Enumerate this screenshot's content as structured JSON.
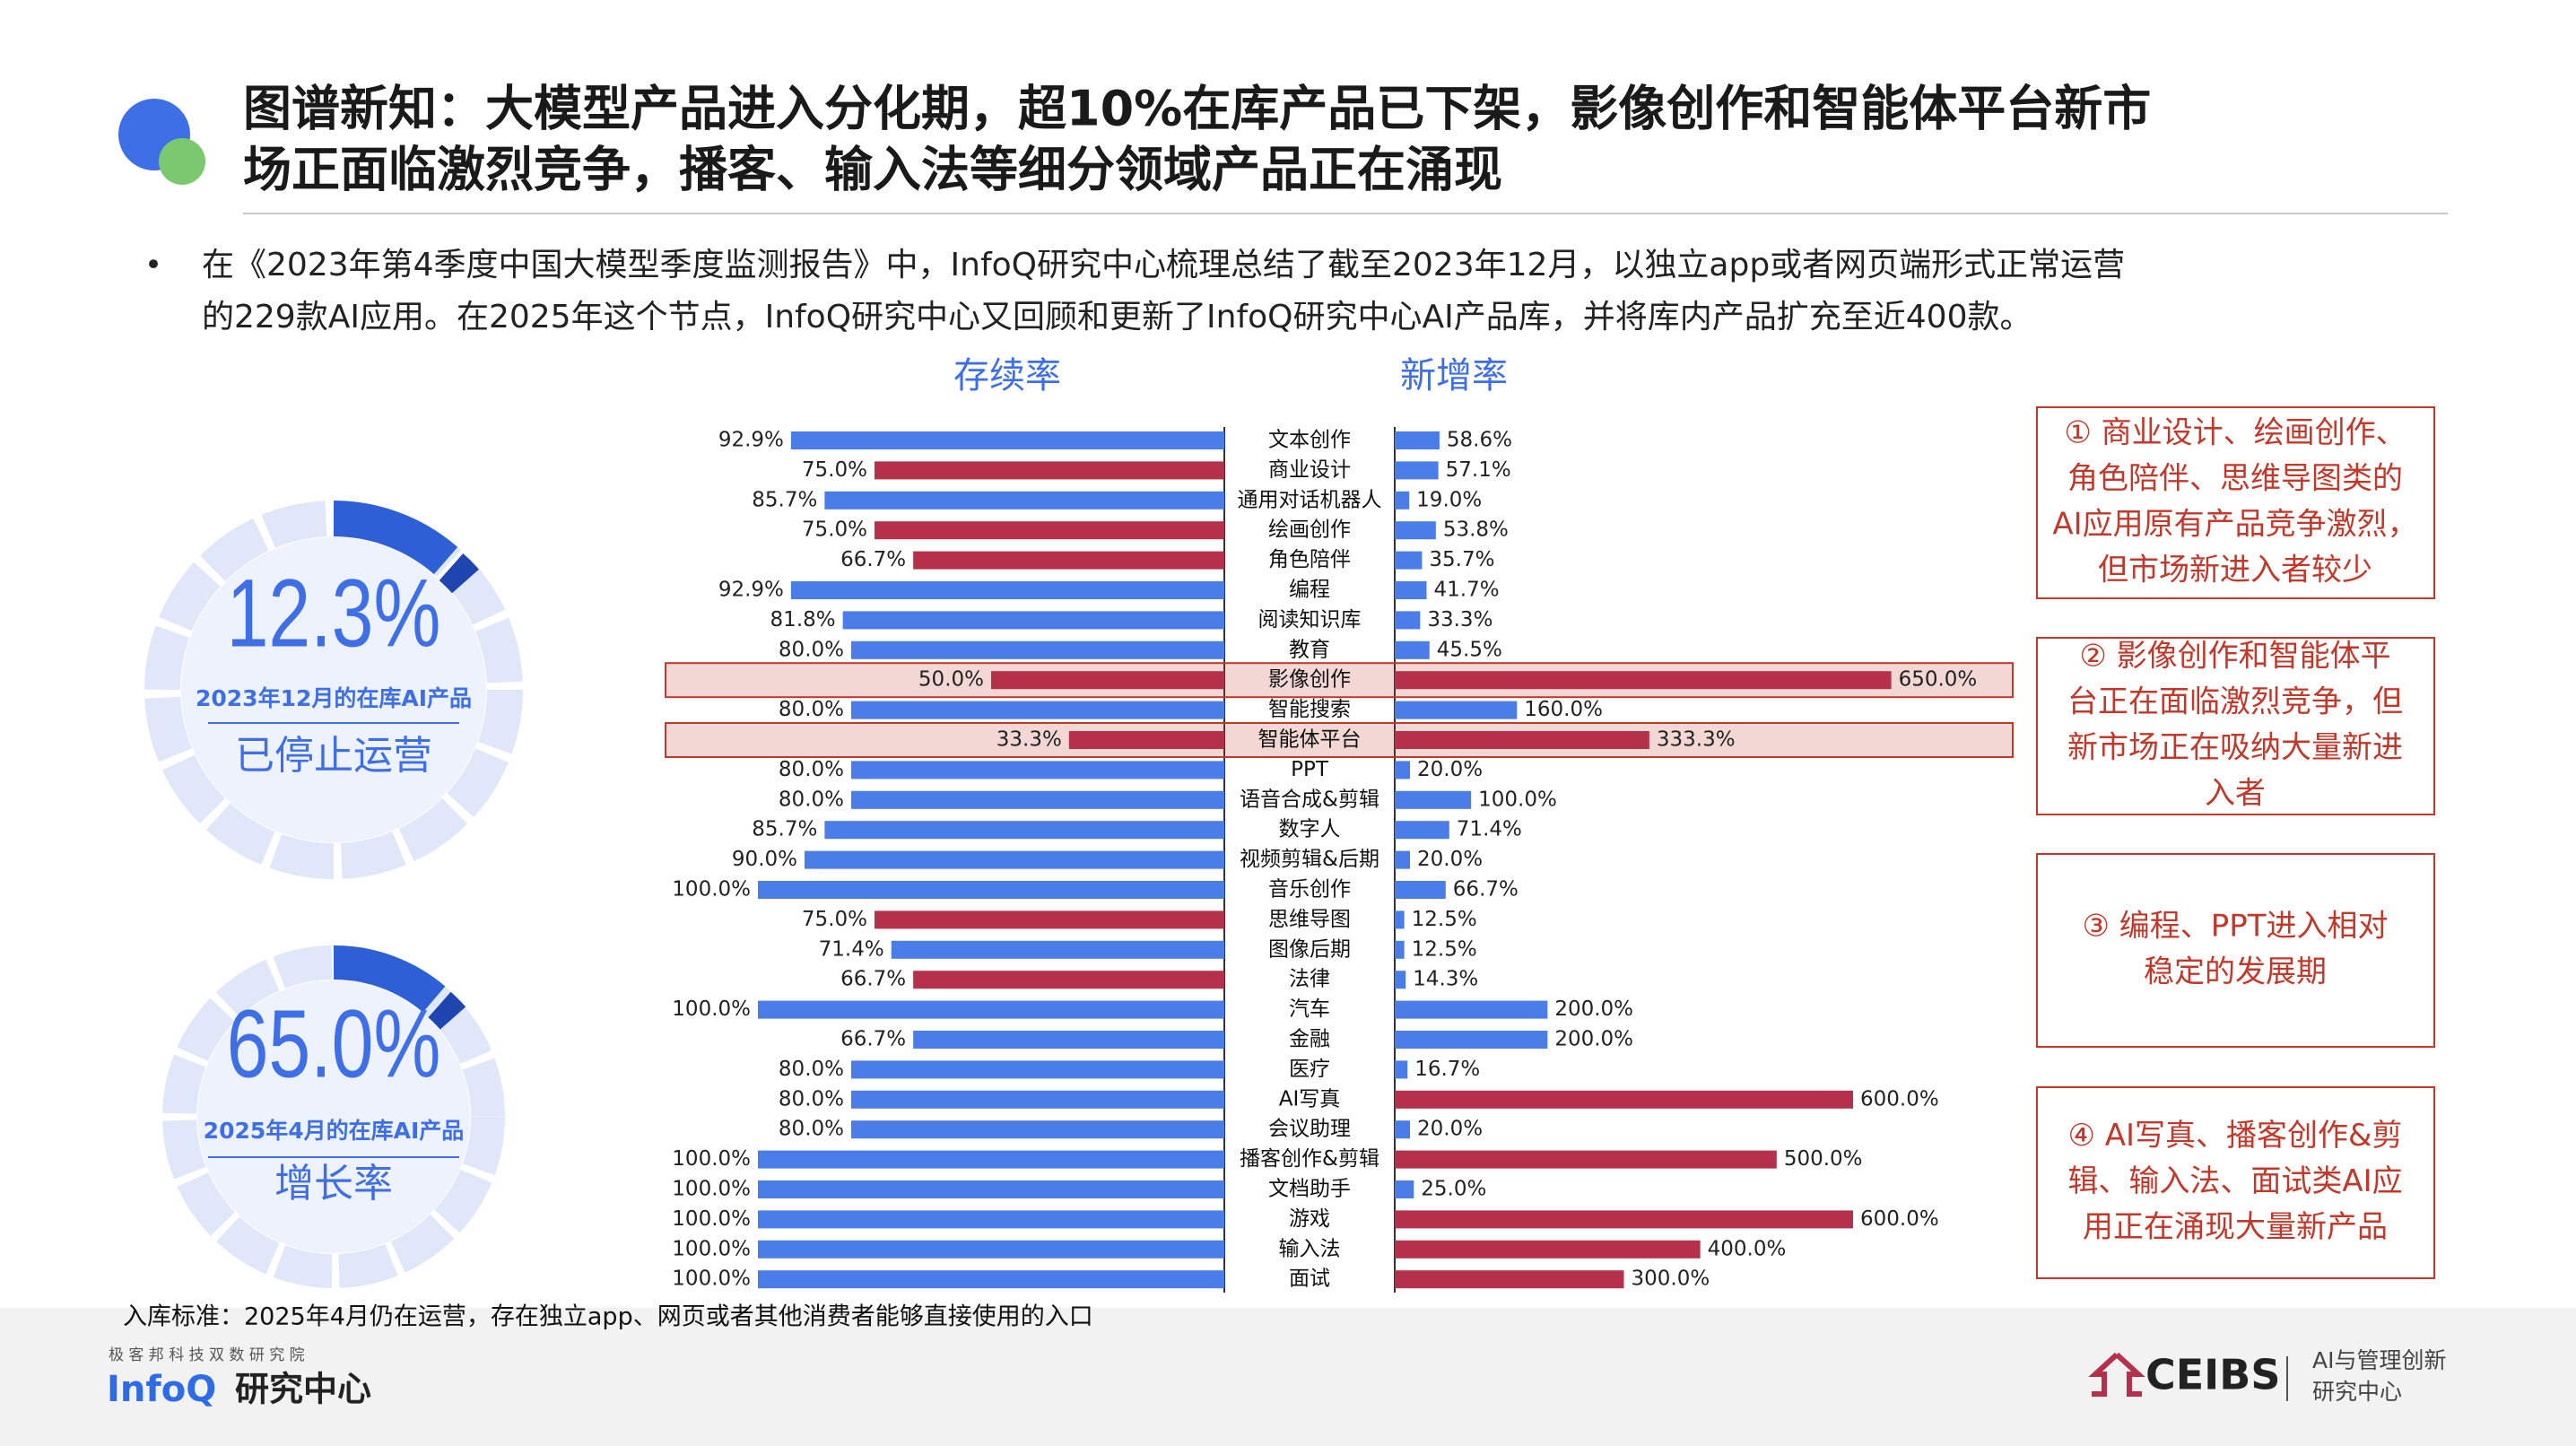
{
  "header": {
    "title": [
      "图谱新知：大模型产品进入分化期，超10%在库产品已下架，影像创作和智能体平台新市",
      "场正面临激烈竞争，播客、输入法等细分领域产品正在涌现"
    ],
    "bullet": [
      "在《2023年第4季度中国大模型季度监测报告》中，InfoQ研究中心梳理总结了截至2023年12月，以独立app或者网页端形式正常运营",
      "的229款AI应用。在2025年这个节点，InfoQ研究中心又回顾和更新了InfoQ研究中心AI产品库，并将库内产品扩充至近400款。"
    ]
  },
  "kpis": [
    {
      "value": "12.3%",
      "caption": "2023年12月的在库AI产品",
      "label": "已停止运营"
    },
    {
      "value": "65.0%",
      "caption": "2025年4月的在库AI产品",
      "label": "增长率"
    }
  ],
  "chart_data": {
    "type": "butterfly",
    "categories": [
      "文本创作",
      "商业设计",
      "通用对话机器人",
      "绘画创作",
      "角色陪伴",
      "编程",
      "阅读知识库",
      "教育",
      "影像创作",
      "智能搜索",
      "智能体平台",
      "PPT",
      "语音合成&剪辑",
      "数字人",
      "视频剪辑&后期",
      "音乐创作",
      "思维导图",
      "图像后期",
      "法律",
      "汽车",
      "金融",
      "医疗",
      "AI写真",
      "会议助理",
      "播客创作&剪辑",
      "文档助手",
      "游戏",
      "输入法",
      "面试"
    ],
    "series": [
      {
        "name": "存续率",
        "xlim": [
          0,
          100
        ],
        "values": [
          92.9,
          75.0,
          85.7,
          75.0,
          66.7,
          92.9,
          81.8,
          80.0,
          50.0,
          80.0,
          33.3,
          80.0,
          80.0,
          85.7,
          90.0,
          100.0,
          75.0,
          71.4,
          66.7,
          100.0,
          66.7,
          80.0,
          80.0,
          80.0,
          100.0,
          100.0,
          100.0,
          100.0,
          100.0
        ],
        "value_labels": [
          "92.9%",
          "75.0%",
          "85.7%",
          "75.0%",
          "66.7%",
          "92.9%",
          "81.8%",
          "80.0%",
          "50.0%",
          "80.0%",
          "33.3%",
          "80.0%",
          "80.0%",
          "85.7%",
          "90.0%",
          "100.0%",
          "75.0%",
          "71.4%",
          "66.7%",
          "100.0%",
          "66.7%",
          "80.0%",
          "80.0%",
          "80.0%",
          "100.0%",
          "100.0%",
          "100.0%",
          "100.0%",
          "100.0%"
        ],
        "colors": [
          "#4a7de8",
          "#b5304a",
          "#4a7de8",
          "#b5304a",
          "#b5304a",
          "#4a7de8",
          "#4a7de8",
          "#4a7de8",
          "#b5304a",
          "#4a7de8",
          "#b5304a",
          "#4a7de8",
          "#4a7de8",
          "#4a7de8",
          "#4a7de8",
          "#4a7de8",
          "#b5304a",
          "#4a7de8",
          "#b5304a",
          "#4a7de8",
          "#4a7de8",
          "#4a7de8",
          "#4a7de8",
          "#4a7de8",
          "#4a7de8",
          "#4a7de8",
          "#4a7de8",
          "#4a7de8",
          "#4a7de8"
        ]
      },
      {
        "name": "新增率",
        "xlim": [
          0,
          600
        ],
        "values": [
          58.6,
          57.1,
          19.0,
          53.8,
          35.7,
          41.7,
          33.3,
          45.5,
          650.0,
          160.0,
          333.3,
          20.0,
          100.0,
          71.4,
          20.0,
          66.7,
          12.5,
          12.5,
          14.3,
          200.0,
          200.0,
          16.7,
          600.0,
          20.0,
          500.0,
          25.0,
          600.0,
          400.0,
          300.0
        ],
        "value_labels": [
          "58.6%",
          "57.1%",
          "19.0%",
          "53.8%",
          "35.7%",
          "41.7%",
          "33.3%",
          "45.5%",
          "650.0%",
          "160.0%",
          "333.3%",
          "20.0%",
          "100.0%",
          "71.4%",
          "20.0%",
          "66.7%",
          "12.5%",
          "12.5%",
          "14.3%",
          "200.0%",
          "200.0%",
          "16.7%",
          "600.0%",
          "20.0%",
          "500.0%",
          "25.0%",
          "600.0%",
          "400.0%",
          "300.0%"
        ],
        "colors": [
          "#4a7de8",
          "#4a7de8",
          "#4a7de8",
          "#4a7de8",
          "#4a7de8",
          "#4a7de8",
          "#4a7de8",
          "#4a7de8",
          "#b5304a",
          "#4a7de8",
          "#b5304a",
          "#4a7de8",
          "#4a7de8",
          "#4a7de8",
          "#4a7de8",
          "#4a7de8",
          "#4a7de8",
          "#4a7de8",
          "#4a7de8",
          "#4a7de8",
          "#4a7de8",
          "#4a7de8",
          "#b5304a",
          "#4a7de8",
          "#b5304a",
          "#4a7de8",
          "#b5304a",
          "#b5304a",
          "#b5304a"
        ]
      }
    ],
    "highlighted_rows": [
      8,
      10
    ],
    "highlight_color": "#c0392b"
  },
  "notes": [
    [
      "① 商业设计、绘画创作、",
      "角色陪伴、思维导图类的",
      "AI应用原有产品竞争激烈，",
      "但市场新进入者较少"
    ],
    [
      "② 影像创作和智能体平",
      "台正在面临激烈竞争，但",
      "新市场正在吸纳大量新进",
      "入者"
    ],
    [
      "③ 编程、PPT进入相对",
      "稳定的发展期"
    ],
    [
      "④ AI写真、播客创作&剪",
      "辑、输入法、面试类AI应",
      "用正在涌现大量新产品"
    ]
  ],
  "footnote": "入库标准：2025年4月仍在运营，存在独立app、网页或者其他消费者能够直接使用的入口",
  "footer": {
    "left_small": "极 客 邦 科 技 双 数 研 究 院",
    "left_brand": "InfoQ",
    "left_name": "研究中心",
    "right_brand": "CEIBS",
    "right_name": [
      "AI与管理创新",
      "研究中心"
    ]
  }
}
